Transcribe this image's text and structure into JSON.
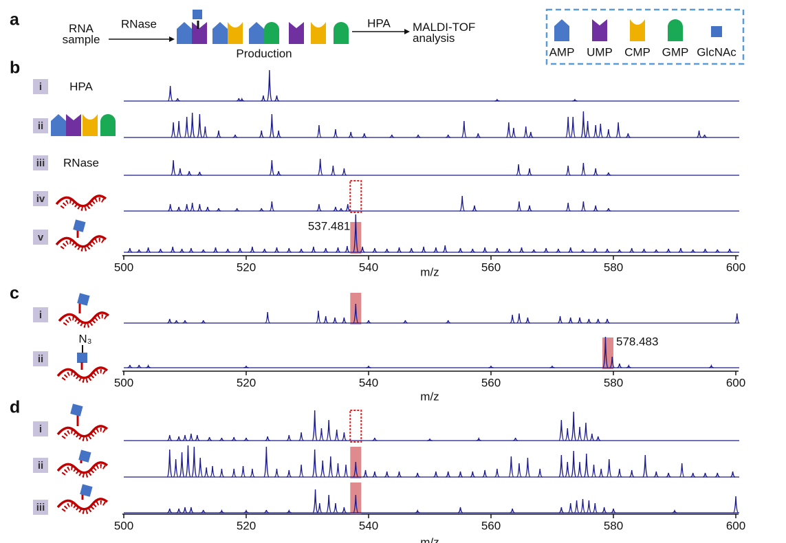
{
  "scheme": {
    "label": "a",
    "sample": "RNA sample",
    "enzyme": "RNase",
    "product": "Production",
    "matrix": "HPA",
    "analysis": "MALDI-TOF analysis",
    "legend": [
      "AMP",
      "UMP",
      "CMP",
      "GMP",
      "GlcNAc"
    ]
  },
  "chart_data": [
    {
      "type": "spectrum",
      "label": "b",
      "xlim": [
        500,
        600
      ],
      "xticks": [
        500,
        520,
        540,
        560,
        580,
        600
      ],
      "xlabel": "m/z",
      "color": "#1b1b8f",
      "ylim": [
        0,
        60
      ],
      "traces": [
        {
          "name": "i",
          "caption": "HPA",
          "x": [
            507.6,
            508.8,
            518.8,
            519.3,
            522.8,
            523.8,
            525.0,
            561.0,
            573.7
          ],
          "values": [
            22,
            4,
            4,
            3,
            8,
            45,
            8,
            2,
            2
          ]
        },
        {
          "name": "ii",
          "x": [
            508.1,
            509.0,
            510.3,
            511.2,
            512.4,
            513.3,
            515.5,
            518.2,
            522.5,
            524.2,
            525.3,
            531.9,
            534.6,
            537.1,
            539.3,
            543.8,
            548.1,
            553.0,
            555.6,
            557.9,
            562.9,
            563.7,
            565.7,
            566.5,
            572.6,
            573.4,
            575.1,
            575.8,
            577.1,
            577.9,
            579.2,
            580.8,
            582.4,
            594.0,
            594.9
          ],
          "values": [
            22,
            24,
            30,
            36,
            34,
            16,
            10,
            4,
            10,
            34,
            10,
            18,
            12,
            8,
            6,
            4,
            4,
            4,
            24,
            6,
            22,
            14,
            16,
            8,
            30,
            30,
            38,
            24,
            18,
            20,
            12,
            22,
            6,
            10,
            4
          ]
        },
        {
          "name": "iii",
          "caption": "RNase",
          "x": [
            508.1,
            509.2,
            510.7,
            512.4,
            524.2,
            525.3,
            532.1,
            534.2,
            536.0,
            564.5,
            566.3,
            572.6,
            575.1,
            577.1,
            579.2
          ],
          "values": [
            22,
            10,
            6,
            5,
            22,
            6,
            24,
            14,
            10,
            16,
            10,
            14,
            18,
            10,
            4
          ]
        },
        {
          "name": "iv",
          "highlight": {
            "x": 537.9,
            "style": "dashed",
            "color": "#e02020"
          },
          "x": [
            507.6,
            509.0,
            510.3,
            511.2,
            512.4,
            513.7,
            515.5,
            518.5,
            522.5,
            524.2,
            531.9,
            534.6,
            535.5,
            536.6,
            555.3,
            557.3,
            564.6,
            566.3,
            572.6,
            575.1,
            577.1,
            579.2
          ],
          "values": [
            10,
            6,
            10,
            12,
            10,
            6,
            4,
            4,
            4,
            14,
            10,
            6,
            4,
            10,
            22,
            8,
            14,
            8,
            12,
            14,
            8,
            4
          ]
        },
        {
          "name": "v",
          "highlight": {
            "x": 537.9,
            "style": "filled",
            "color": "#d9777a"
          },
          "peak_label": 537.481,
          "x": [
            501,
            502.5,
            504,
            506,
            508,
            509.5,
            511,
            513,
            515,
            517,
            519,
            521,
            523,
            525,
            527,
            529,
            531,
            533,
            535,
            536.5,
            537.9,
            539,
            541,
            543,
            545,
            547,
            549,
            551,
            552.5,
            555,
            557,
            559,
            561,
            563,
            565,
            567,
            569,
            571,
            573,
            575,
            577,
            579,
            581,
            583,
            585,
            587,
            589,
            591,
            593,
            595,
            597,
            599
          ],
          "values": [
            6,
            4,
            7,
            5,
            8,
            5,
            6,
            4,
            7,
            5,
            6,
            8,
            5,
            7,
            6,
            5,
            8,
            6,
            7,
            9,
            55,
            8,
            6,
            5,
            7,
            6,
            8,
            7,
            10,
            6,
            5,
            7,
            6,
            5,
            7,
            4,
            6,
            5,
            7,
            4,
            6,
            5,
            4,
            6,
            5,
            4,
            5,
            6,
            4,
            5,
            4,
            5
          ]
        }
      ]
    },
    {
      "type": "spectrum",
      "label": "c",
      "xlim": [
        500,
        600
      ],
      "xticks": [
        500,
        520,
        540,
        560,
        580,
        600
      ],
      "xlabel": "m/z",
      "color": "#1b1b8f",
      "ylim": [
        0,
        60
      ],
      "traces": [
        {
          "name": "i",
          "highlight": {
            "x": 537.9,
            "style": "filled",
            "color": "#d9777a"
          },
          "x": [
            507.5,
            508.6,
            510,
            513,
            523.5,
            531.8,
            533,
            534.5,
            536,
            537.9,
            540,
            546,
            553,
            563.5,
            564.6,
            566,
            571.3,
            573,
            574.5,
            576,
            577.5,
            579,
            600.2
          ],
          "values": [
            6,
            4,
            4,
            4,
            16,
            18,
            10,
            8,
            8,
            28,
            4,
            4,
            4,
            12,
            14,
            8,
            10,
            8,
            8,
            6,
            6,
            6,
            14
          ]
        },
        {
          "name": "ii",
          "caption": "N₃",
          "highlight": {
            "x": 579.1,
            "style": "filled",
            "color": "#d9777a"
          },
          "peak_label": 578.483,
          "x": [
            501,
            502.5,
            504,
            520,
            540,
            560,
            570,
            578.7,
            579.8,
            581,
            582.5,
            596
          ],
          "values": [
            4,
            4,
            3,
            2,
            2,
            2,
            2,
            45,
            16,
            6,
            3,
            3
          ]
        }
      ]
    },
    {
      "type": "spectrum",
      "label": "d",
      "xlim": [
        500,
        600
      ],
      "xticks": [
        500,
        520,
        540,
        560,
        580,
        600
      ],
      "xlabel": "m/z",
      "color": "#1b1b8f",
      "ylim": [
        0,
        60
      ],
      "traces": [
        {
          "name": "i",
          "highlight": {
            "x": 537.9,
            "style": "dashed",
            "color": "#e02020"
          },
          "x": [
            507.5,
            509,
            510,
            511,
            512,
            514,
            516,
            518,
            520,
            523.5,
            527,
            529,
            531.2,
            532.3,
            533.5,
            534.8,
            536,
            541,
            550,
            558,
            564,
            571.5,
            572.5,
            573.5,
            574.5,
            575.5,
            576.5,
            577.5
          ],
          "values": [
            8,
            6,
            8,
            10,
            8,
            5,
            4,
            5,
            4,
            6,
            8,
            12,
            44,
            18,
            30,
            16,
            12,
            4,
            2,
            3,
            4,
            30,
            18,
            42,
            20,
            26,
            10,
            6
          ]
        },
        {
          "name": "ii",
          "highlight": {
            "x": 537.9,
            "style": "filled",
            "color": "#d9777a"
          },
          "x": [
            507.5,
            508.5,
            509.5,
            510.5,
            511.5,
            512.5,
            513.5,
            514.5,
            516,
            518,
            519.5,
            521,
            523.3,
            525,
            527,
            529,
            531.2,
            532.5,
            533.8,
            535,
            536.3,
            537.9,
            539.5,
            541,
            543,
            545,
            548,
            551,
            553,
            555,
            557,
            559,
            561,
            563.3,
            564.6,
            566,
            568,
            571.5,
            572.5,
            573.5,
            574.5,
            575.6,
            576.8,
            578,
            579.3,
            581,
            583,
            585.2,
            587,
            589,
            591.2,
            593,
            595,
            597,
            599.5
          ],
          "values": [
            40,
            26,
            36,
            46,
            44,
            28,
            14,
            16,
            12,
            12,
            16,
            12,
            44,
            12,
            10,
            18,
            40,
            24,
            30,
            20,
            18,
            22,
            10,
            8,
            8,
            8,
            6,
            8,
            8,
            8,
            8,
            10,
            12,
            30,
            20,
            28,
            12,
            32,
            22,
            38,
            22,
            34,
            18,
            12,
            26,
            12,
            10,
            32,
            8,
            6,
            20,
            6,
            6,
            6,
            8
          ]
        },
        {
          "name": "iii",
          "highlight": {
            "x": 537.9,
            "style": "filled",
            "color": "#d9777a"
          },
          "x": [
            507.5,
            509,
            510,
            511,
            513,
            516,
            520,
            523.3,
            527,
            531.3,
            532,
            533.5,
            534.6,
            536,
            537.9,
            548,
            555,
            563.5,
            571.5,
            573,
            574,
            575,
            576,
            577,
            578.5,
            580,
            590,
            600
          ],
          "values": [
            6,
            6,
            8,
            8,
            4,
            3,
            3,
            4,
            3,
            34,
            14,
            26,
            14,
            8,
            26,
            3,
            8,
            6,
            8,
            14,
            18,
            20,
            18,
            14,
            8,
            6,
            3,
            24
          ]
        }
      ]
    }
  ]
}
